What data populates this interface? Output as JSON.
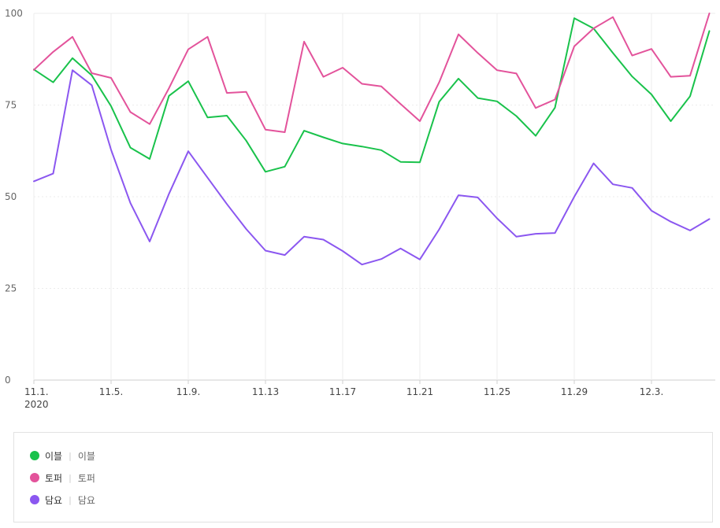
{
  "chart_data": {
    "type": "line",
    "x": [
      "11.1.",
      "11.2",
      "11.3",
      "11.4",
      "11.5.",
      "11.6",
      "11.7",
      "11.8",
      "11.9.",
      "11.10",
      "11.11",
      "11.12",
      "11.13",
      "11.14",
      "11.15",
      "11.16",
      "11.17",
      "11.18",
      "11.19",
      "11.20",
      "11.21",
      "11.22",
      "11.23",
      "11.24",
      "11.25",
      "11.26",
      "11.27",
      "11.28",
      "11.29",
      "11.30",
      "12.1",
      "12.2",
      "12.3.",
      "12.4",
      "12.5",
      "12.6"
    ],
    "x_tick_labels": [
      "11.1.",
      "11.5.",
      "11.9.",
      "11.13",
      "11.17",
      "11.21",
      "11.25",
      "11.29",
      "12.3."
    ],
    "x_tick_indices": [
      0,
      4,
      8,
      12,
      16,
      20,
      24,
      28,
      32
    ],
    "year_label": "2020",
    "ylim": [
      0,
      100
    ],
    "y_ticks": [
      0,
      25,
      50,
      75,
      100
    ],
    "grid": true,
    "series": [
      {
        "name": "이블",
        "color": "#19c24b",
        "values": [
          84.7,
          81.2,
          87.8,
          83.1,
          74.7,
          63.4,
          60.3,
          77.5,
          81.5,
          71.6,
          72.1,
          65.3,
          56.8,
          58.2,
          68.0,
          66.2,
          64.5,
          63.7,
          62.7,
          59.5,
          59.4,
          75.9,
          82.2,
          76.9,
          76.0,
          72.0,
          66.6,
          74.3,
          98.7,
          95.9,
          89.2,
          82.8,
          77.9,
          70.6,
          77.4,
          95.2
        ]
      },
      {
        "name": "토퍼",
        "color": "#e3539b",
        "values": [
          84.6,
          89.5,
          93.6,
          83.7,
          82.4,
          73.1,
          69.8,
          79.6,
          90.2,
          93.6,
          78.3,
          78.6,
          68.3,
          67.6,
          92.3,
          82.7,
          85.2,
          80.8,
          80.1,
          75.3,
          70.6,
          81.2,
          94.3,
          89.2,
          84.5,
          83.6,
          74.2,
          76.5,
          91.0,
          95.9,
          99.0,
          88.5,
          90.3,
          82.7,
          83.0,
          100.0
        ]
      },
      {
        "name": "담요",
        "color": "#8b57f0",
        "values": [
          54.2,
          56.3,
          84.5,
          80.4,
          62.8,
          48.3,
          37.8,
          50.8,
          62.4,
          55.2,
          48.0,
          41.2,
          35.3,
          34.1,
          39.1,
          38.3,
          35.2,
          31.5,
          33.0,
          35.9,
          32.9,
          41.1,
          50.4,
          49.8,
          44.1,
          39.1,
          39.9,
          40.1,
          50.0,
          59.1,
          53.4,
          52.4,
          46.2,
          43.2,
          40.8,
          43.9
        ]
      }
    ]
  },
  "legend": {
    "items": [
      {
        "name": "이블",
        "desc": "이블",
        "color": "#19c24b"
      },
      {
        "name": "토퍼",
        "desc": "토퍼",
        "color": "#e3539b"
      },
      {
        "name": "담요",
        "desc": "담요",
        "color": "#8b57f0"
      }
    ]
  }
}
